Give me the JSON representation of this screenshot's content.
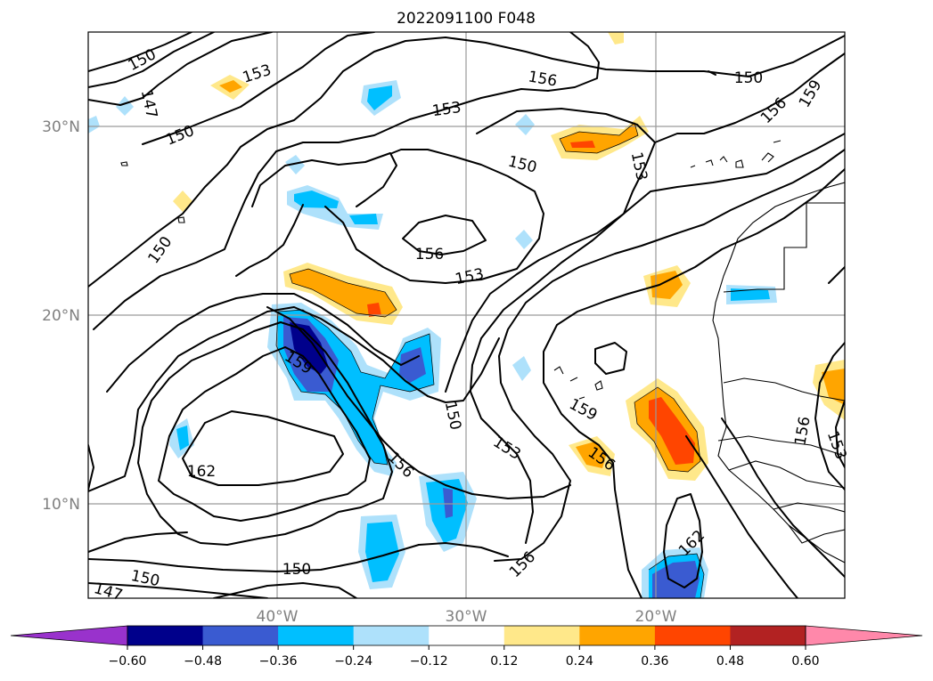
{
  "title": "2022091100 F048",
  "map": {
    "lon_labels": [
      "40°W",
      "30°W",
      "20°W"
    ],
    "lat_labels": [
      "30°N",
      "20°N",
      "10°N"
    ],
    "contour_labels": [
      "150",
      "147",
      "153",
      "156",
      "150",
      "156",
      "159",
      "147",
      "150",
      "150",
      "153",
      "156",
      "153",
      "150",
      "153",
      "150",
      "153",
      "156",
      "159",
      "150",
      "153",
      "156",
      "156",
      "162",
      "150",
      "147",
      "150",
      "156",
      "162",
      "156",
      "153"
    ]
  },
  "colorbar": {
    "ticks": [
      "−0.60",
      "−0.48",
      "−0.36",
      "−0.24",
      "−0.12",
      "0.12",
      "0.24",
      "0.36",
      "0.48",
      "0.60"
    ],
    "colors": [
      "#9932cc",
      "#00008b",
      "#3a5bd1",
      "#00bfff",
      "#aee1fb",
      "#ffffff",
      "#ffe88a",
      "#ffa500",
      "#ff4500",
      "#b22222",
      "#ff88aa"
    ],
    "under_color": "#9932cc",
    "over_color": "#ff88aa"
  }
}
